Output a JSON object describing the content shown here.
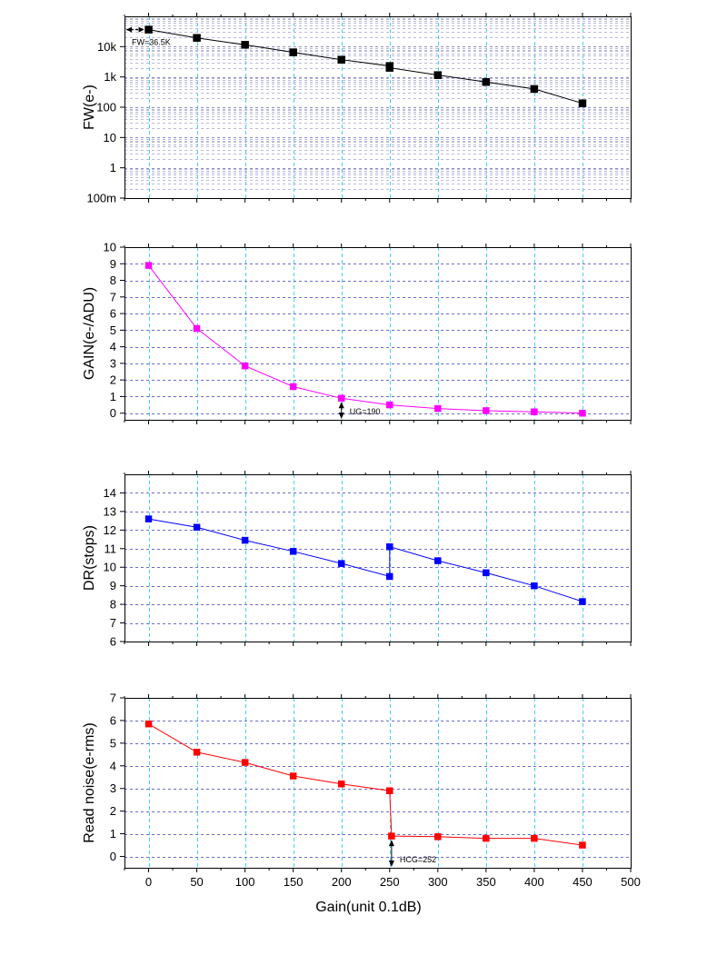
{
  "chart_data": [
    {
      "type": "line",
      "ylabel": "FW(e-)",
      "yscale": "log",
      "ylim": [
        0.1,
        100000
      ],
      "yticks": [
        0.1,
        1,
        10,
        100,
        1000,
        10000
      ],
      "ytick_labels": [
        "100m",
        "1",
        "10",
        "100",
        "1k",
        "10k"
      ],
      "xlim": [
        -25,
        500
      ],
      "x": [
        0,
        50,
        100,
        150,
        200,
        250,
        250,
        300,
        350,
        400,
        450
      ],
      "y": [
        36500,
        19500,
        11500,
        6500,
        3700,
        2300,
        2000,
        1150,
        680,
        400,
        135
      ],
      "color": "#000000",
      "grid": true,
      "annotation": "FW=36.5K"
    },
    {
      "type": "line",
      "ylabel": "GAIN(e-/ADU)",
      "ylim": [
        -0.4,
        10
      ],
      "yticks": [
        0,
        1,
        2,
        3,
        4,
        5,
        6,
        7,
        8,
        9,
        10
      ],
      "xlim": [
        -25,
        500
      ],
      "x": [
        0,
        50,
        100,
        150,
        200,
        250,
        300,
        350,
        400,
        450
      ],
      "y": [
        8.9,
        5.1,
        2.85,
        1.6,
        0.9,
        0.5,
        0.28,
        0.15,
        0.08,
        0.0
      ],
      "color": "#ff00ff",
      "grid": true,
      "annotation": "UG=190",
      "annotation_x": 200
    },
    {
      "type": "line",
      "ylabel": "DR(stops)",
      "ylim": [
        6,
        15
      ],
      "yticks": [
        6,
        7,
        8,
        9,
        10,
        11,
        12,
        13,
        14
      ],
      "xlim": [
        -25,
        500
      ],
      "x": [
        0,
        50,
        100,
        150,
        200,
        250,
        250,
        300,
        350,
        400,
        450
      ],
      "y": [
        12.6,
        12.15,
        11.45,
        10.85,
        10.2,
        9.5,
        11.1,
        10.35,
        9.7,
        9.0,
        8.15
      ],
      "color": "#0000ff",
      "grid": true
    },
    {
      "type": "line",
      "ylabel": "Read noise(e-rms)",
      "xlabel": "Gain(unit 0.1dB)",
      "ylim": [
        -0.5,
        7
      ],
      "yticks": [
        0,
        1,
        2,
        3,
        4,
        5,
        6,
        7
      ],
      "xlim": [
        -25,
        500
      ],
      "xticks": [
        0,
        50,
        100,
        150,
        200,
        250,
        300,
        350,
        400,
        450,
        500
      ],
      "x": [
        0,
        50,
        100,
        150,
        200,
        250,
        252,
        300,
        350,
        400,
        450
      ],
      "y": [
        5.85,
        4.6,
        4.15,
        3.55,
        3.2,
        2.9,
        0.9,
        0.87,
        0.8,
        0.8,
        0.5
      ],
      "color": "#ff0000",
      "grid": true,
      "annotation": "HCG=252",
      "annotation_x": 252
    }
  ]
}
